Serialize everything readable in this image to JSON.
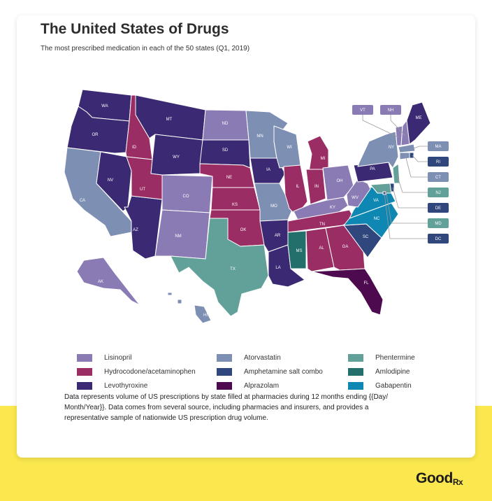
{
  "header": {
    "title": "The United States of Drugs",
    "subtitle": "The most prescribed medication in each of the 50 states (Q1, 2019)"
  },
  "legend": [
    {
      "key": "lis",
      "label": "Lisinopril",
      "color": "#8a7bb4"
    },
    {
      "key": "ator",
      "label": "Atorvastatin",
      "color": "#7d8fb3"
    },
    {
      "key": "phen",
      "label": "Phentermine",
      "color": "#62a199"
    },
    {
      "key": "hydro",
      "label": "Hydrocodone/acetaminophen",
      "color": "#9a2d63"
    },
    {
      "key": "amph",
      "label": "Amphetamine salt combo",
      "color": "#2f477c"
    },
    {
      "key": "amlo",
      "label": "Amlodipine",
      "color": "#226f6c"
    },
    {
      "key": "levo",
      "label": "Levothyroxine",
      "color": "#3b2a73"
    },
    {
      "key": "alpra",
      "label": "Alprazolam",
      "color": "#4e0a4f"
    },
    {
      "key": "gaba",
      "label": "Gabapentin",
      "color": "#0f87b3"
    }
  ],
  "chart_data": {
    "type": "choropleth",
    "title": "The United States of Drugs",
    "subtitle": "The most prescribed medication in each of the 50 states (Q1, 2019)",
    "states": [
      {
        "code": "WA",
        "drug": "Levothyroxine"
      },
      {
        "code": "OR",
        "drug": "Levothyroxine"
      },
      {
        "code": "CA",
        "drug": "Atorvastatin"
      },
      {
        "code": "ID",
        "drug": "Hydrocodone/acetaminophen"
      },
      {
        "code": "NV",
        "drug": "Levothyroxine"
      },
      {
        "code": "AZ",
        "drug": "Levothyroxine"
      },
      {
        "code": "UT",
        "drug": "Hydrocodone/acetaminophen"
      },
      {
        "code": "MT",
        "drug": "Levothyroxine"
      },
      {
        "code": "WY",
        "drug": "Levothyroxine"
      },
      {
        "code": "CO",
        "drug": "Lisinopril"
      },
      {
        "code": "NM",
        "drug": "Lisinopril"
      },
      {
        "code": "ND",
        "drug": "Lisinopril"
      },
      {
        "code": "SD",
        "drug": "Levothyroxine"
      },
      {
        "code": "NE",
        "drug": "Hydrocodone/acetaminophen"
      },
      {
        "code": "KS",
        "drug": "Hydrocodone/acetaminophen"
      },
      {
        "code": "OK",
        "drug": "Hydrocodone/acetaminophen"
      },
      {
        "code": "TX",
        "drug": "Phentermine"
      },
      {
        "code": "MN",
        "drug": "Atorvastatin"
      },
      {
        "code": "IA",
        "drug": "Levothyroxine"
      },
      {
        "code": "MO",
        "drug": "Atorvastatin"
      },
      {
        "code": "AR",
        "drug": "Levothyroxine"
      },
      {
        "code": "LA",
        "drug": "Levothyroxine"
      },
      {
        "code": "WI",
        "drug": "Atorvastatin"
      },
      {
        "code": "IL",
        "drug": "Hydrocodone/acetaminophen"
      },
      {
        "code": "MI",
        "drug": "Hydrocodone/acetaminophen"
      },
      {
        "code": "IN",
        "drug": "Hydrocodone/acetaminophen"
      },
      {
        "code": "OH",
        "drug": "Lisinopril"
      },
      {
        "code": "KY",
        "drug": "Lisinopril"
      },
      {
        "code": "TN",
        "drug": "Hydrocodone/acetaminophen"
      },
      {
        "code": "MS",
        "drug": "Amlodipine"
      },
      {
        "code": "AL",
        "drug": "Hydrocodone/acetaminophen"
      },
      {
        "code": "GA",
        "drug": "Hydrocodone/acetaminophen"
      },
      {
        "code": "FL",
        "drug": "Alprazolam"
      },
      {
        "code": "SC",
        "drug": "Amphetamine salt combo"
      },
      {
        "code": "NC",
        "drug": "Gabapentin"
      },
      {
        "code": "VA",
        "drug": "Gabapentin"
      },
      {
        "code": "WV",
        "drug": "Lisinopril"
      },
      {
        "code": "PA",
        "drug": "Levothyroxine"
      },
      {
        "code": "NY",
        "drug": "Atorvastatin"
      },
      {
        "code": "VT",
        "drug": "Lisinopril"
      },
      {
        "code": "NH",
        "drug": "Lisinopril"
      },
      {
        "code": "ME",
        "drug": "Levothyroxine"
      },
      {
        "code": "MA",
        "drug": "Atorvastatin"
      },
      {
        "code": "RI",
        "drug": "Amphetamine salt combo"
      },
      {
        "code": "CT",
        "drug": "Atorvastatin"
      },
      {
        "code": "NJ",
        "drug": "Phentermine"
      },
      {
        "code": "DE",
        "drug": "Amphetamine salt combo"
      },
      {
        "code": "MD",
        "drug": "Phentermine"
      },
      {
        "code": "DC",
        "drug": "Amphetamine salt combo"
      },
      {
        "code": "AK",
        "drug": "Lisinopril"
      },
      {
        "code": "HI",
        "drug": "Atorvastatin"
      }
    ]
  },
  "footnote": "Data represents volume of US prescriptions by state filled at pharmacies during 12 months ending {{Day/ Month/Year}}. Data comes from several source, including pharmacies and insurers, and provides a representative sample of nationwide US prescription drug volume.",
  "brand": {
    "name": "Good",
    "suffix": "Rx"
  }
}
